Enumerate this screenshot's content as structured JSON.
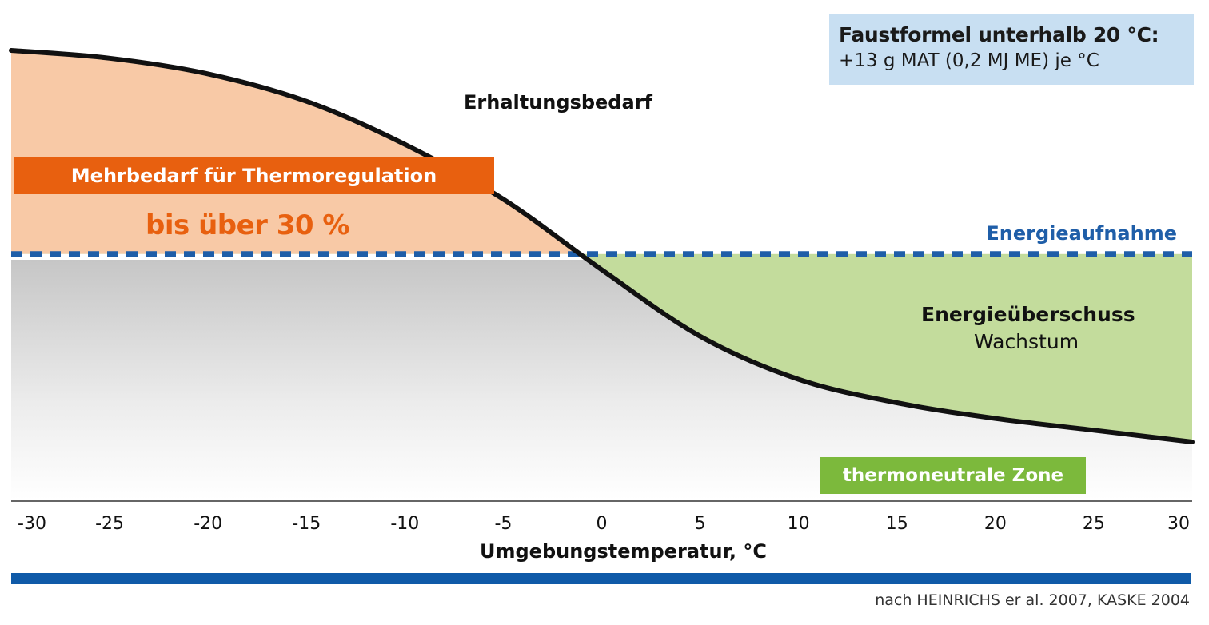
{
  "chart_data": {
    "type": "line",
    "xlabel": "Umgebungstemperatur, °C",
    "xlim": [
      -30,
      30
    ],
    "x_ticks": [
      "-30",
      "-25",
      "-20",
      "-15",
      "-10",
      "-5",
      "0",
      "5",
      "10",
      "15",
      "20",
      "25",
      "30"
    ],
    "series": [
      {
        "name": "Erhaltungsbedarf",
        "x": [
          -30,
          -25,
          -20,
          -15,
          -10,
          -5,
          0,
          5,
          10,
          15,
          20,
          25,
          30
        ],
        "values": [
          100,
          98,
          94,
          87,
          76,
          62,
          44,
          27,
          16,
          10,
          6,
          3,
          0
        ]
      },
      {
        "name": "Energieaufnahme",
        "x": [
          -30,
          30
        ],
        "values": [
          48,
          48
        ]
      }
    ],
    "regions": {
      "surplus_label": "Energieüberschuss",
      "surplus_sublabel": "Wachstum",
      "extra_need_label": "Mehrbedarf für Thermoregulation",
      "extra_need_value": "bis über 30 %",
      "thermoneutral_label": "thermoneutrale Zone"
    },
    "colors": {
      "extra_need_fill": "#f8c9a6",
      "surplus_fill": "#c3dc9c",
      "curve": "#111111",
      "intake_line": "#1f5ea8",
      "extra_need_banner": "#e8600f",
      "thermoneutral_banner": "#7cb93c",
      "info_box": "#c8dff2",
      "bottom_bar": "#0f5aa8"
    }
  },
  "info_box": {
    "title": "Faustformel unterhalb 20 °C:",
    "text": "+13 g MAT (0,2 MJ ME) je °C"
  },
  "source": "nach HEINRICHS er al. 2007, KASKE 2004"
}
